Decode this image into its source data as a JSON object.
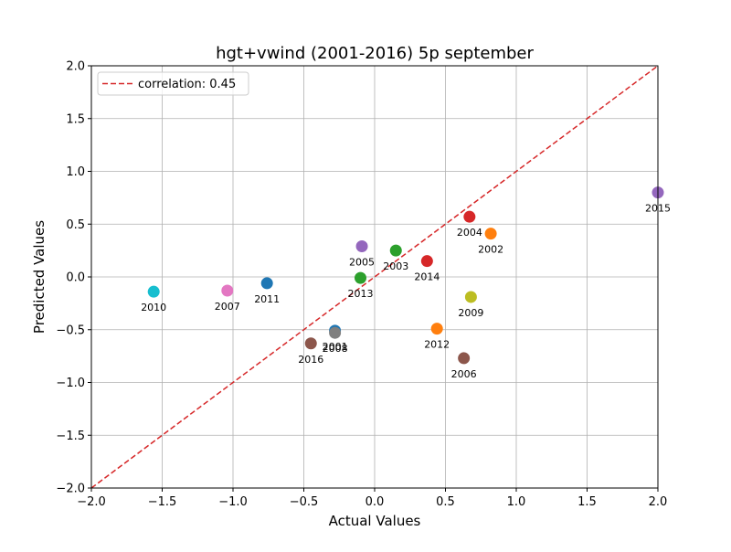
{
  "chart_data": {
    "type": "scatter",
    "title": "hgt+vwind (2001-2016) 5p september",
    "xlabel": "Actual Values",
    "ylabel": "Predicted Values",
    "xlim": [
      -2.0,
      2.0
    ],
    "ylim": [
      -2.0,
      2.0
    ],
    "grid": true,
    "legend_position": "top-left",
    "x_ticks": [
      "−2.0",
      "−1.5",
      "−1.0",
      "−0.5",
      "0.0",
      "0.5",
      "1.0",
      "1.5",
      "2.0"
    ],
    "y_ticks": [
      "−2.0",
      "−1.5",
      "−1.0",
      "−0.5",
      "0.0",
      "0.5",
      "1.0",
      "1.5",
      "2.0"
    ],
    "reference_line": {
      "label": "correlation: 0.45",
      "color": "#d62728",
      "style": "dashed",
      "points": [
        [
          -2.0,
          -2.0
        ],
        [
          2.0,
          2.0
        ]
      ]
    },
    "points": [
      {
        "label": "2001",
        "x": -0.28,
        "y": -0.51,
        "color": "#1f77b4"
      },
      {
        "label": "2002",
        "x": 0.82,
        "y": 0.41,
        "color": "#ff7f0e"
      },
      {
        "label": "2003",
        "x": 0.15,
        "y": 0.25,
        "color": "#2ca02c"
      },
      {
        "label": "2004",
        "x": 0.67,
        "y": 0.57,
        "color": "#d62728"
      },
      {
        "label": "2005",
        "x": -0.09,
        "y": 0.29,
        "color": "#9467bd"
      },
      {
        "label": "2006",
        "x": 0.63,
        "y": -0.77,
        "color": "#8c564b"
      },
      {
        "label": "2007",
        "x": -1.04,
        "y": -0.13,
        "color": "#e377c2"
      },
      {
        "label": "2008",
        "x": -0.28,
        "y": -0.53,
        "color": "#7f7f7f"
      },
      {
        "label": "2009",
        "x": 0.68,
        "y": -0.19,
        "color": "#bcbd22"
      },
      {
        "label": "2010",
        "x": -1.56,
        "y": -0.14,
        "color": "#17becf"
      },
      {
        "label": "2011",
        "x": -0.76,
        "y": -0.06,
        "color": "#1f77b4"
      },
      {
        "label": "2012",
        "x": 0.44,
        "y": -0.49,
        "color": "#ff7f0e"
      },
      {
        "label": "2013",
        "x": -0.1,
        "y": -0.01,
        "color": "#2ca02c"
      },
      {
        "label": "2014",
        "x": 0.37,
        "y": 0.15,
        "color": "#d62728"
      },
      {
        "label": "2015",
        "x": 2.0,
        "y": 0.8,
        "color": "#9467bd"
      },
      {
        "label": "2016",
        "x": -0.45,
        "y": -0.63,
        "color": "#8c564b"
      }
    ]
  }
}
